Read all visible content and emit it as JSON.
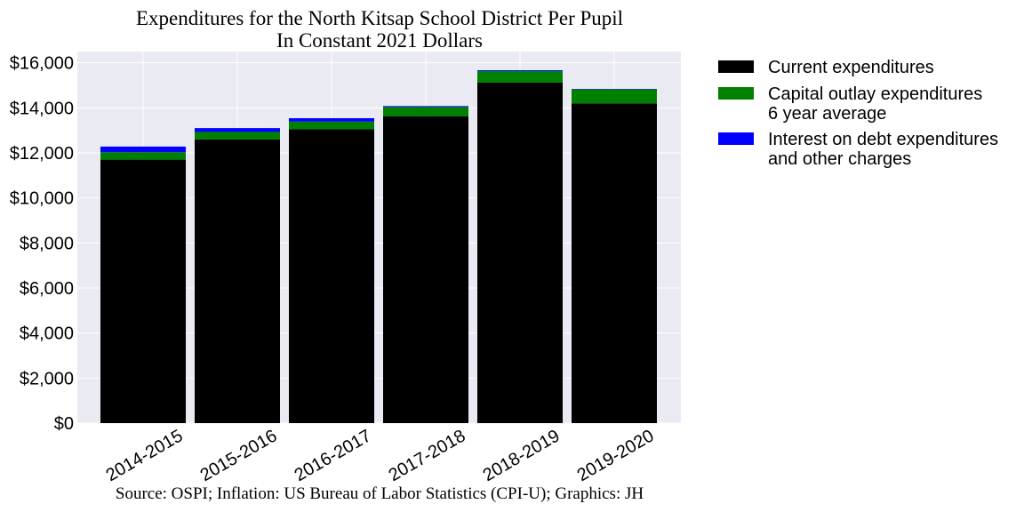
{
  "chart_data": {
    "type": "bar",
    "stacked": true,
    "title_line1": "Expenditures for the North Kitsap School District Per Pupil",
    "title_line2": "In Constant 2021 Dollars",
    "xlabel": "",
    "ylabel": "",
    "categories": [
      "2014-2015",
      "2015-2016",
      "2016-2017",
      "2017-2018",
      "2018-2019",
      "2019-2020"
    ],
    "series": [
      {
        "name": "Current expenditures",
        "color": "#000000",
        "values": [
          11700,
          12600,
          13050,
          13620,
          15120,
          14200
        ]
      },
      {
        "name": "Capital outlay expenditures\n6 year average",
        "color": "#008000",
        "values": [
          330,
          330,
          340,
          420,
          510,
          620
        ]
      },
      {
        "name": "Interest on debt expenditures\nand other charges",
        "color": "#0000ff",
        "values": [
          250,
          170,
          150,
          40,
          40,
          20
        ]
      }
    ],
    "ylim": [
      0,
      16500
    ],
    "yticks": [
      0,
      2000,
      4000,
      6000,
      8000,
      10000,
      12000,
      14000,
      16000
    ],
    "ytick_labels": [
      "$0",
      "$2,000",
      "$4,000",
      "$6,000",
      "$8,000",
      "$10,000",
      "$12,000",
      "$14,000",
      "$16,000"
    ],
    "grid": true,
    "legend_position": "outside-right",
    "footnote": "Source: OSPI; Inflation: US Bureau of Labor Statistics (CPI-U); Graphics: JH"
  },
  "colors": {
    "plot_background": "#eaeaf2",
    "grid": "#ffffff"
  }
}
